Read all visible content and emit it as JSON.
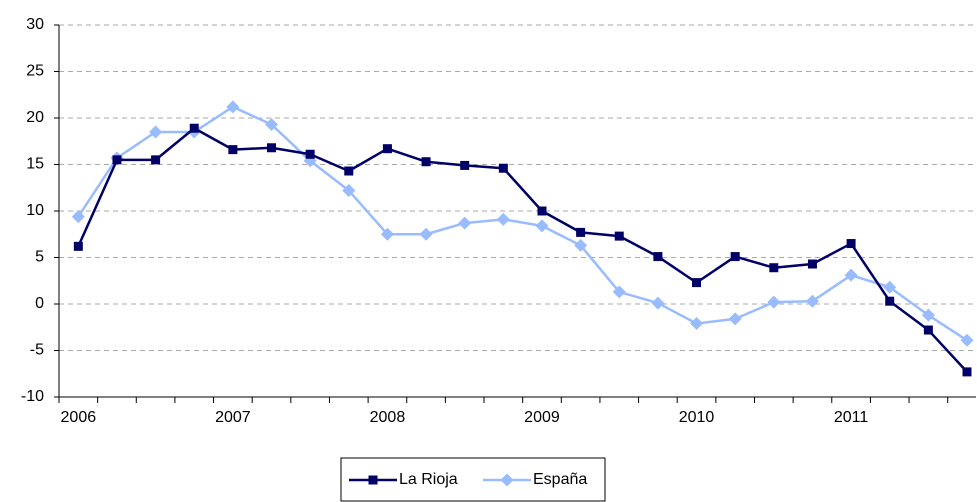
{
  "chart_data": {
    "type": "line",
    "categories": [
      "2006",
      null,
      null,
      null,
      "2007",
      null,
      null,
      null,
      "2008",
      null,
      null,
      null,
      "2009",
      null,
      null,
      null,
      "2010",
      null,
      null,
      null,
      "2011",
      null,
      null,
      null
    ],
    "series": [
      {
        "name": "La Rioja",
        "color": "#000066",
        "marker": "square",
        "values": [
          6.2,
          15.5,
          15.5,
          18.9,
          16.6,
          16.8,
          16.1,
          14.3,
          16.7,
          15.3,
          14.9,
          14.6,
          10.0,
          7.7,
          7.3,
          5.1,
          2.3,
          5.1,
          3.9,
          4.3,
          6.5,
          0.3,
          -2.8,
          -7.3
        ]
      },
      {
        "name": "España",
        "color": "#99bbff",
        "marker": "diamond",
        "values": [
          9.4,
          15.7,
          18.5,
          18.5,
          21.2,
          19.3,
          15.4,
          12.2,
          7.5,
          7.5,
          8.7,
          9.1,
          8.4,
          6.3,
          1.3,
          0.1,
          -2.1,
          -1.6,
          0.2,
          0.3,
          3.1,
          1.8,
          -1.2,
          -3.9
        ]
      }
    ],
    "ylim": [
      -10,
      30
    ],
    "yticks": [
      -10,
      -5,
      0,
      5,
      10,
      15,
      20,
      25,
      30
    ],
    "grid": true,
    "legend": "bottom"
  }
}
